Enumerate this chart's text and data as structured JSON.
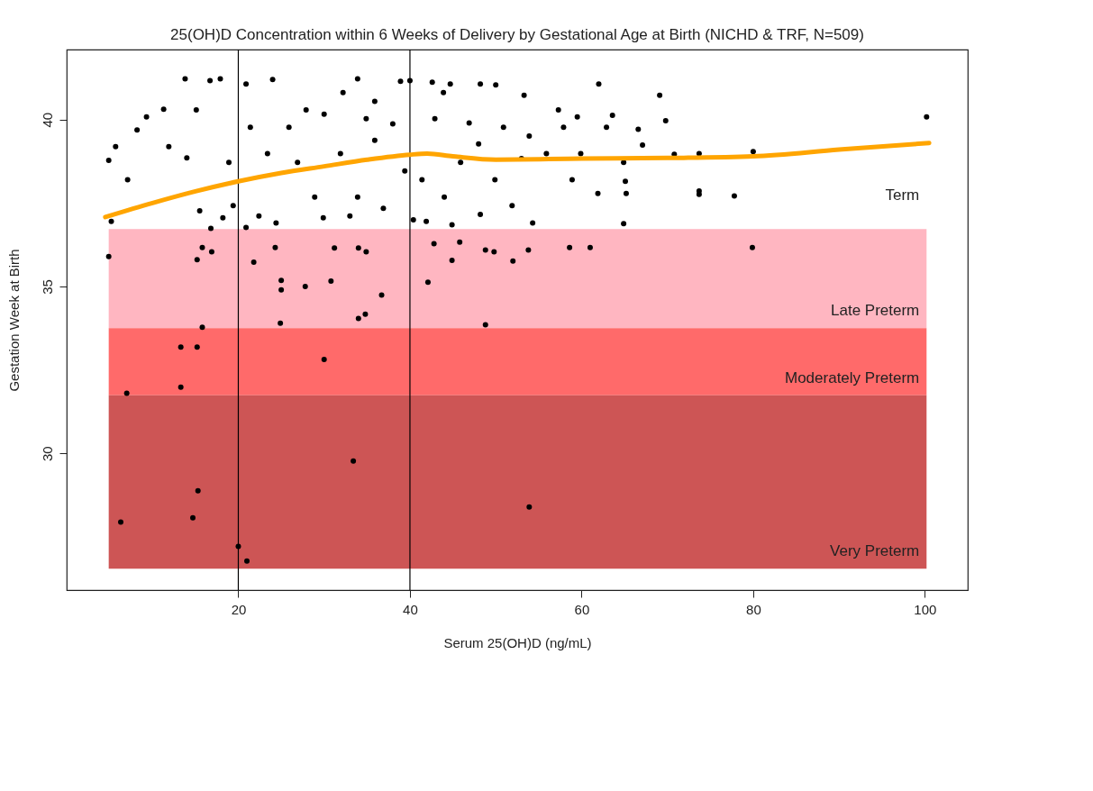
{
  "chart_data": {
    "type": "scatter",
    "title": "25(OH)D Concentration within 6 Weeks of Delivery by Gestational Age at Birth (NICHD & TRF, N=509)",
    "xlabel": "Serum 25(OH)D (ng/mL)",
    "ylabel": "Gestation Week at Birth",
    "xlim": [
      0,
      105
    ],
    "ylim": [
      25.9,
      42.1
    ],
    "xticks": [
      20,
      40,
      60,
      80,
      100
    ],
    "yticks": [
      30,
      35,
      40
    ],
    "series": [
      {
        "marker": "circle",
        "color": "#000000",
        "x": [
          4.9,
          7.0,
          6.3,
          13.3,
          13.3,
          15.2,
          15.8,
          15.3,
          14.7,
          15.2,
          15.8,
          16.9,
          20.0,
          21.0,
          21.8,
          24.3,
          25.0,
          25.0,
          24.9,
          27.8,
          30.0,
          30.8,
          31.2,
          34.0,
          34.8,
          34.0,
          34.9,
          36.7,
          33.4,
          42.1,
          42.8,
          44.9,
          48.8,
          48.8,
          49.8,
          52.0,
          53.8,
          53.9,
          58.6,
          61.0,
          79.9,
          45.8,
          100.2,
          80.0,
          77.8,
          73.7,
          73.7,
          73.7,
          69.8,
          69.1,
          70.8,
          64.9,
          65.1,
          65.2,
          62.0,
          66.6,
          67.1,
          63.6,
          61.9,
          59.5,
          58.9,
          57.3,
          53.3,
          53.0,
          54.3,
          50.0,
          48.2,
          48.0,
          48.2,
          44.7,
          42.6,
          40.0,
          38.9,
          33.9,
          32.2,
          30.0,
          38.0,
          35.9,
          33.9,
          33.0,
          36.9,
          40.4,
          41.9,
          44.9,
          41.4,
          44.0,
          45.9,
          46.9,
          50.9,
          55.9,
          57.9,
          51.9,
          29.9,
          28.9,
          26.9,
          25.9,
          24.0,
          20.9,
          17.9,
          16.7,
          13.8,
          11.3,
          9.3,
          8.2,
          5.7,
          4.9,
          5.2,
          7.1,
          11.9,
          14.0,
          15.1,
          15.5,
          16.8,
          18.2,
          19.4,
          20.9,
          22.4,
          24.4,
          18.9,
          21.4,
          23.4,
          31.9,
          34.9,
          39.4,
          42.9,
          49.9,
          53.9,
          59.9,
          62.9,
          64.9,
          43.9,
          35.9,
          27.9
        ],
        "values": [
          35.9,
          31.8,
          27.94,
          33.18,
          31.98,
          33.18,
          33.78,
          28.88,
          28.07,
          35.8,
          36.17,
          36.04,
          27.21,
          26.77,
          35.73,
          36.17,
          35.18,
          34.9,
          33.9,
          35.0,
          32.81,
          35.16,
          36.15,
          34.04,
          34.17,
          36.15,
          36.04,
          34.74,
          29.77,
          35.13,
          36.28,
          35.78,
          33.85,
          36.09,
          36.04,
          35.76,
          36.09,
          28.39,
          36.17,
          36.17,
          36.17,
          36.33,
          40.08,
          39.04,
          37.71,
          37.86,
          37.76,
          38.98,
          39.97,
          40.73,
          38.96,
          36.88,
          38.15,
          37.79,
          41.07,
          39.71,
          39.24,
          40.13,
          37.79,
          40.08,
          38.2,
          40.29,
          40.73,
          38.83,
          36.9,
          41.04,
          41.07,
          39.27,
          37.16,
          41.07,
          41.12,
          41.17,
          41.15,
          41.22,
          40.81,
          40.16,
          39.87,
          39.38,
          37.68,
          37.11,
          37.34,
          37.0,
          36.95,
          36.85,
          38.2,
          37.68,
          38.72,
          39.9,
          39.77,
          38.98,
          39.77,
          37.42,
          37.06,
          37.68,
          38.72,
          39.77,
          41.2,
          41.07,
          41.22,
          41.17,
          41.22,
          40.31,
          40.08,
          39.69,
          39.19,
          38.78,
          36.95,
          38.2,
          39.19,
          38.85,
          40.29,
          37.27,
          36.74,
          37.06,
          37.42,
          36.77,
          37.11,
          36.9,
          38.72,
          39.77,
          38.98,
          38.98,
          40.03,
          38.46,
          40.03,
          38.2,
          39.51,
          38.98,
          39.77,
          38.72,
          40.81,
          40.55,
          40.29
        ]
      },
      {
        "type": "line",
        "color": "#ffa500",
        "x": [
          4.5,
          10,
          15,
          20,
          25,
          30,
          35,
          40,
          42,
          45,
          50,
          60,
          70,
          80,
          90,
          100.5
        ],
        "values": [
          37.08,
          37.5,
          37.85,
          38.15,
          38.4,
          38.6,
          38.8,
          38.95,
          38.98,
          38.9,
          38.8,
          38.83,
          38.85,
          38.9,
          39.1,
          39.3
        ]
      }
    ],
    "bands": [
      {
        "axis": "y",
        "from": 33.75,
        "to": 36.72,
        "label": "Late Preterm",
        "color": "#ffb6c1"
      },
      {
        "axis": "y",
        "from": 31.74,
        "to": 33.75,
        "label": "Moderately Preterm",
        "color": "#ff6a6a"
      },
      {
        "axis": "y",
        "from": 26.54,
        "to": 31.74,
        "label": "Very Preterm",
        "color": "#cd5555"
      }
    ],
    "ref_lines": [
      {
        "axis": "x",
        "value": 20,
        "color": "#000000"
      },
      {
        "axis": "x",
        "value": 40,
        "color": "#000000"
      }
    ],
    "annotations": [
      "Term"
    ]
  }
}
